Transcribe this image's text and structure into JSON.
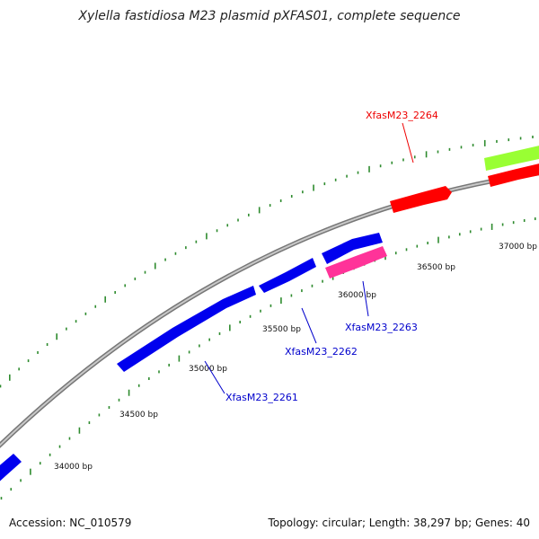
{
  "title": "Xylella fastidiosa M23 plasmid pXFAS01, complete sequence",
  "footer": {
    "accession": "Accession: NC_010579",
    "summary": "Topology: circular; Length: 38,297 bp; Genes: 40"
  },
  "colors": {
    "backbone": "#8c8c8c",
    "tick": "#2e8b2e",
    "forward_gene": "#ff0000",
    "reverse_gene": "#0000ee",
    "other_gene": "#ff3399",
    "rna_or_misc": "#99ff33",
    "label_blue": "#0000cc",
    "label_red": "#ee0000"
  },
  "ticks": [
    {
      "label": "34000 bp"
    },
    {
      "label": "34500 bp"
    },
    {
      "label": "35000 bp"
    },
    {
      "label": "35500 bp"
    },
    {
      "label": "36000 bp"
    },
    {
      "label": "36500 bp"
    },
    {
      "label": "37000 bp"
    }
  ],
  "genes": [
    {
      "name": "XfasM23_2261",
      "strand": "reverse"
    },
    {
      "name": "XfasM23_2262",
      "strand": "reverse"
    },
    {
      "name": "XfasM23_2263",
      "strand": "reverse"
    },
    {
      "name": "XfasM23_2264",
      "strand": "forward"
    }
  ]
}
